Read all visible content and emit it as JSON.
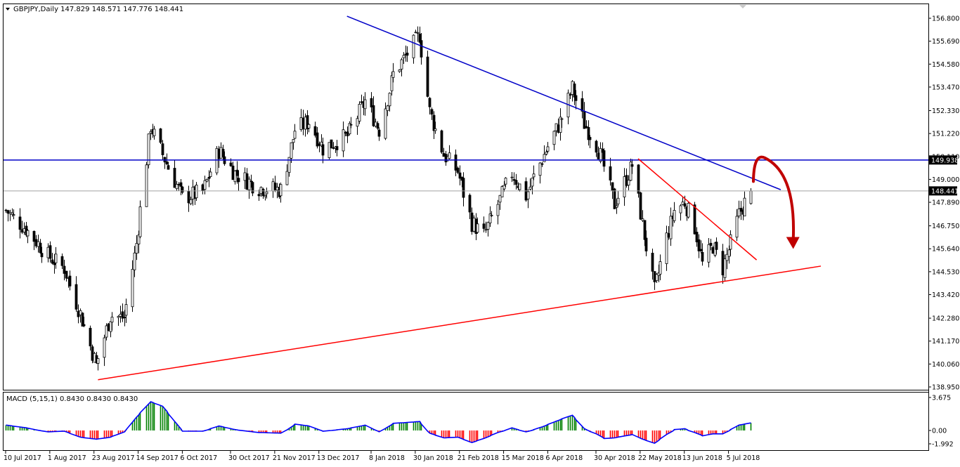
{
  "header": {
    "symbol_line": "GBPJPY,Daily  147.829 148.571 147.776 148.441"
  },
  "macd_header": "MACD (5,15,1) 0.8430 0.8430 0.8430",
  "colors": {
    "bull_candle": "#000000",
    "bear_candle": "#000000",
    "resistance_line": "#0000c8",
    "support_line": "#ff0000",
    "horizontal_level": "#0000c8",
    "arrow": "#c00000",
    "macd_positive": "#008000",
    "macd_negative": "#ff0000",
    "macd_signal": "#0000ff",
    "price_label_bg": "#000000"
  },
  "chart_data": [
    {
      "type": "candlestick",
      "title": "GBPJPY, Daily",
      "ylim": [
        138.95,
        156.9
      ],
      "y_ticks": [
        "156.800",
        "155.690",
        "154.580",
        "153.470",
        "152.330",
        "151.220",
        "150.110",
        "149.000",
        "147.890",
        "146.750",
        "145.640",
        "144.530",
        "143.420",
        "142.280",
        "141.170",
        "140.060",
        "138.950"
      ],
      "x_ticks": [
        "10 Jul 2017",
        "1 Aug 2017",
        "23 Aug 2017",
        "14 Sep 2017",
        "6 Oct 2017",
        "30 Oct 2017",
        "21 Nov 2017",
        "13 Dec 2017",
        "8 Jan 2018",
        "30 Jan 2018",
        "21 Feb 2018",
        "15 Mar 2018",
        "6 Apr 2018",
        "30 Apr 2018",
        "22 May 2018",
        "13 Jun 2018",
        "5 Jul 2018"
      ],
      "last_ohlc": {
        "open": 147.829,
        "high": 148.571,
        "low": 147.776,
        "close": 148.441
      },
      "price_labels": [
        {
          "value": "149.938",
          "kind": "horizontal-level"
        },
        {
          "value": "148.441",
          "kind": "current-price"
        }
      ],
      "price_path": [
        {
          "date": "2017-07-10",
          "close": 147.5
        },
        {
          "date": "2017-07-20",
          "close": 146.6
        },
        {
          "date": "2017-07-31",
          "close": 145.3
        },
        {
          "date": "2017-08-08",
          "close": 144.7
        },
        {
          "date": "2017-08-16",
          "close": 142.5
        },
        {
          "date": "2017-08-24",
          "close": 140.0
        },
        {
          "date": "2017-08-31",
          "close": 142.4
        },
        {
          "date": "2017-09-07",
          "close": 142.3
        },
        {
          "date": "2017-09-13",
          "close": 145.9
        },
        {
          "date": "2017-09-20",
          "close": 151.6
        },
        {
          "date": "2017-09-26",
          "close": 150.2
        },
        {
          "date": "2017-10-06",
          "close": 148.1
        },
        {
          "date": "2017-10-16",
          "close": 148.4
        },
        {
          "date": "2017-10-24",
          "close": 150.4
        },
        {
          "date": "2017-11-01",
          "close": 149.3
        },
        {
          "date": "2017-11-13",
          "close": 148.6
        },
        {
          "date": "2017-11-24",
          "close": 148.5
        },
        {
          "date": "2017-12-01",
          "close": 151.4
        },
        {
          "date": "2017-12-08",
          "close": 151.8
        },
        {
          "date": "2017-12-15",
          "close": 150.5
        },
        {
          "date": "2017-12-27",
          "close": 151.1
        },
        {
          "date": "2018-01-05",
          "close": 152.8
        },
        {
          "date": "2018-01-12",
          "close": 151.4
        },
        {
          "date": "2018-01-19",
          "close": 154.1
        },
        {
          "date": "2018-01-26",
          "close": 155.1
        },
        {
          "date": "2018-02-01",
          "close": 156.0
        },
        {
          "date": "2018-02-06",
          "close": 152.3
        },
        {
          "date": "2018-02-13",
          "close": 150.2
        },
        {
          "date": "2018-02-20",
          "close": 149.4
        },
        {
          "date": "2018-02-27",
          "close": 146.9
        },
        {
          "date": "2018-03-05",
          "close": 146.3
        },
        {
          "date": "2018-03-12",
          "close": 147.8
        },
        {
          "date": "2018-03-19",
          "close": 149.3
        },
        {
          "date": "2018-03-26",
          "close": 148.2
        },
        {
          "date": "2018-04-03",
          "close": 150.0
        },
        {
          "date": "2018-04-13",
          "close": 152.0
        },
        {
          "date": "2018-04-18",
          "close": 153.4
        },
        {
          "date": "2018-04-24",
          "close": 151.7
        },
        {
          "date": "2018-04-30",
          "close": 150.7
        },
        {
          "date": "2018-05-04",
          "close": 149.6
        },
        {
          "date": "2018-05-09",
          "close": 147.8
        },
        {
          "date": "2018-05-18",
          "close": 149.7
        },
        {
          "date": "2018-05-23",
          "close": 146.8
        },
        {
          "date": "2018-05-29",
          "close": 143.6
        },
        {
          "date": "2018-06-04",
          "close": 146.2
        },
        {
          "date": "2018-06-08",
          "close": 147.5
        },
        {
          "date": "2018-06-13",
          "close": 147.9
        },
        {
          "date": "2018-06-18",
          "close": 146.7
        },
        {
          "date": "2018-06-22",
          "close": 144.9
        },
        {
          "date": "2018-06-27",
          "close": 145.8
        },
        {
          "date": "2018-07-02",
          "close": 144.7
        },
        {
          "date": "2018-07-06",
          "close": 145.9
        },
        {
          "date": "2018-07-10",
          "close": 147.3
        },
        {
          "date": "2018-07-16",
          "close": 148.441
        }
      ],
      "trendlines": [
        {
          "name": "descending resistance",
          "color": "#0000c8",
          "from": {
            "date": "2017-12-27",
            "price": 156.9
          },
          "to": {
            "date": "2018-07-31",
            "price": 148.5
          }
        },
        {
          "name": "horizontal level",
          "color": "#0000c8",
          "price": 149.938
        },
        {
          "name": "ascending support",
          "color": "#ff0000",
          "from": {
            "date": "2017-08-25",
            "price": 139.3
          },
          "to": {
            "date": "2018-08-20",
            "price": 144.8
          }
        },
        {
          "name": "short-term descending",
          "color": "#ff0000",
          "from": {
            "date": "2018-05-21",
            "price": 150.0
          },
          "to": {
            "date": "2018-07-19",
            "price": 145.1
          }
        }
      ],
      "annotation": {
        "kind": "curved-arrow",
        "color": "#c00000",
        "from_price": 148.9,
        "peak_price": 149.9,
        "to_price": 145.8
      }
    },
    {
      "type": "bar",
      "title": "MACD (5,15,1) 0.8430 0.8430 0.8430",
      "ylim": [
        -2.3,
        3.9
      ],
      "y_ticks": [
        "3.675",
        "0.00",
        "-1.992"
      ],
      "value_path": [
        {
          "date": "2017-07-10",
          "value": 0.6
        },
        {
          "date": "2017-07-20",
          "value": 0.3
        },
        {
          "date": "2017-07-31",
          "value": -0.2
        },
        {
          "date": "2017-08-08",
          "value": -0.1
        },
        {
          "date": "2017-08-16",
          "value": -1.0
        },
        {
          "date": "2017-08-24",
          "value": -1.3
        },
        {
          "date": "2017-08-31",
          "value": -1.0
        },
        {
          "date": "2017-09-07",
          "value": -0.2
        },
        {
          "date": "2017-09-13",
          "value": 1.5
        },
        {
          "date": "2017-09-20",
          "value": 3.2
        },
        {
          "date": "2017-09-26",
          "value": 2.7
        },
        {
          "date": "2017-10-06",
          "value": -0.1
        },
        {
          "date": "2017-10-16",
          "value": -0.1
        },
        {
          "date": "2017-10-24",
          "value": 0.5
        },
        {
          "date": "2017-11-01",
          "value": 0.1
        },
        {
          "date": "2017-11-13",
          "value": -0.3
        },
        {
          "date": "2017-11-24",
          "value": -0.4
        },
        {
          "date": "2017-12-01",
          "value": 0.7
        },
        {
          "date": "2017-12-08",
          "value": 0.5
        },
        {
          "date": "2017-12-15",
          "value": -0.1
        },
        {
          "date": "2017-12-27",
          "value": 0.2
        },
        {
          "date": "2018-01-05",
          "value": 0.6
        },
        {
          "date": "2018-01-12",
          "value": -0.2
        },
        {
          "date": "2018-01-19",
          "value": 0.8
        },
        {
          "date": "2018-01-26",
          "value": 0.9
        },
        {
          "date": "2018-02-01",
          "value": 1.0
        },
        {
          "date": "2018-02-06",
          "value": -0.4
        },
        {
          "date": "2018-02-13",
          "value": -1.1
        },
        {
          "date": "2018-02-20",
          "value": -1.0
        },
        {
          "date": "2018-02-27",
          "value": -1.8
        },
        {
          "date": "2018-03-05",
          "value": -1.2
        },
        {
          "date": "2018-03-12",
          "value": -0.3
        },
        {
          "date": "2018-03-19",
          "value": 0.3
        },
        {
          "date": "2018-03-26",
          "value": -0.2
        },
        {
          "date": "2018-04-03",
          "value": 0.4
        },
        {
          "date": "2018-04-13",
          "value": 1.3
        },
        {
          "date": "2018-04-18",
          "value": 1.7
        },
        {
          "date": "2018-04-24",
          "value": 0.2
        },
        {
          "date": "2018-04-30",
          "value": -0.5
        },
        {
          "date": "2018-05-04",
          "value": -1.2
        },
        {
          "date": "2018-05-09",
          "value": -1.1
        },
        {
          "date": "2018-05-18",
          "value": -0.6
        },
        {
          "date": "2018-05-23",
          "value": -1.3
        },
        {
          "date": "2018-05-29",
          "value": -1.9
        },
        {
          "date": "2018-06-04",
          "value": -0.6
        },
        {
          "date": "2018-06-08",
          "value": 0.1
        },
        {
          "date": "2018-06-13",
          "value": 0.2
        },
        {
          "date": "2018-06-18",
          "value": -0.3
        },
        {
          "date": "2018-06-22",
          "value": -0.8
        },
        {
          "date": "2018-06-27",
          "value": -0.5
        },
        {
          "date": "2018-07-02",
          "value": -0.5
        },
        {
          "date": "2018-07-06",
          "value": 0.1
        },
        {
          "date": "2018-07-10",
          "value": 0.6
        },
        {
          "date": "2018-07-16",
          "value": 0.843
        }
      ]
    }
  ]
}
